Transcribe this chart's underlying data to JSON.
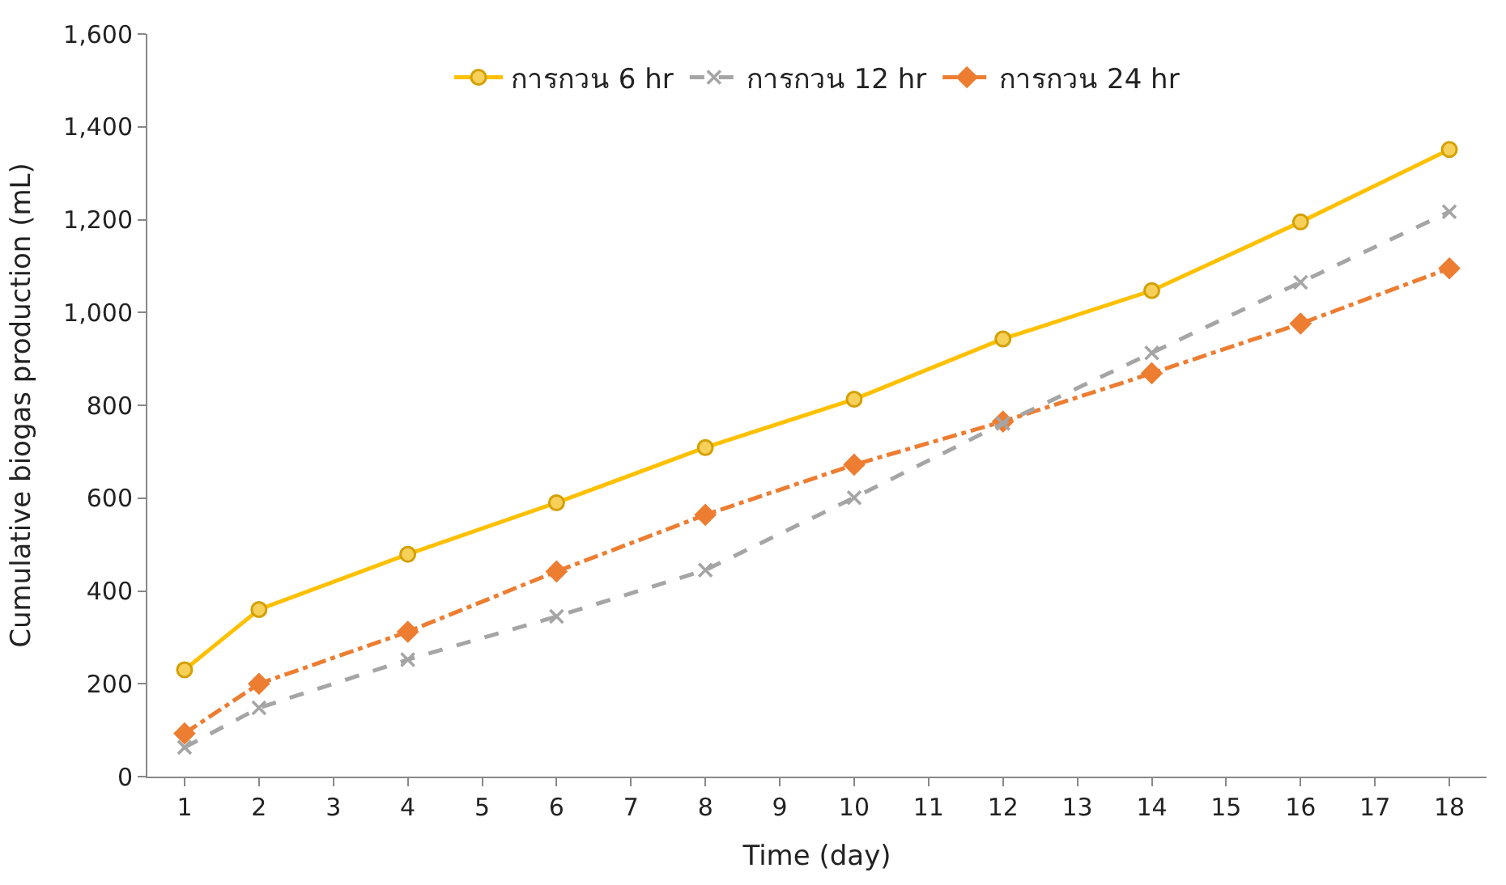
{
  "chart_data": {
    "type": "line",
    "xlabel": "Time (day)",
    "ylabel": "Cumulative biogas production (mL)",
    "x": [
      1,
      2,
      4,
      6,
      8,
      10,
      12,
      14,
      16,
      18
    ],
    "xlim": [
      0.5,
      18.5
    ],
    "xticks": [
      1,
      2,
      3,
      4,
      5,
      6,
      7,
      8,
      9,
      10,
      11,
      12,
      13,
      14,
      15,
      16,
      17,
      18
    ],
    "ylim": [
      0,
      1600
    ],
    "yticks": [
      {
        "value": 0,
        "label": "0"
      },
      {
        "value": 200,
        "label": "200"
      },
      {
        "value": 400,
        "label": "400"
      },
      {
        "value": 600,
        "label": "600"
      },
      {
        "value": 800,
        "label": "800"
      },
      {
        "value": 1000,
        "label": "1,000"
      },
      {
        "value": 1200,
        "label": "1,200"
      },
      {
        "value": 1400,
        "label": "1,400"
      },
      {
        "value": 1600,
        "label": "1,600"
      }
    ],
    "legend": "top",
    "series": [
      {
        "name": "การกวน 6 hr",
        "color": "#ffc000",
        "marker": "circle",
        "line_style": "solid",
        "values": [
          230,
          360,
          479,
          590,
          709,
          813,
          943,
          1047,
          1195,
          1351
        ]
      },
      {
        "name": "การกวน 12 hr",
        "color": "#a5a5a5",
        "marker": "cross",
        "line_style": "dashed",
        "values": [
          63,
          148,
          252,
          345,
          445,
          601,
          761,
          913,
          1065,
          1217
        ]
      },
      {
        "name": "การกวน 24 hr",
        "color": "#ed7d31",
        "marker": "diamond",
        "line_style": "dashdot",
        "values": [
          93,
          200,
          312,
          442,
          564,
          672,
          765,
          869,
          976,
          1095
        ]
      }
    ]
  }
}
